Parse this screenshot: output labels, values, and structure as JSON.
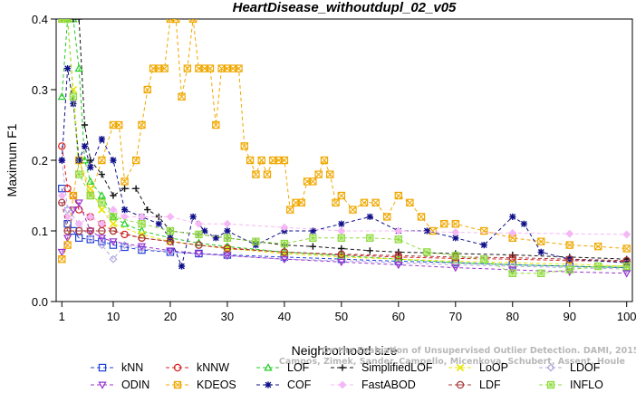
{
  "chart_data": {
    "type": "line",
    "title": "HeartDisease_withoutdupl_02_v05",
    "xlabel": "Neighborhood size",
    "ylabel": "Maximum F1",
    "xlim": [
      0,
      101
    ],
    "ylim": [
      0,
      0.4
    ],
    "xticks": [
      1,
      10,
      20,
      30,
      40,
      50,
      60,
      70,
      80,
      90,
      100
    ],
    "yticks": [
      0.0,
      0.1,
      0.2,
      0.3,
      0.4
    ],
    "xtick_labels": [
      "1",
      "10",
      "20",
      "30",
      "40",
      "50",
      "60",
      "70",
      "80",
      "90",
      "100"
    ],
    "ytick_labels": [
      "0.0",
      "0.1",
      "0.2",
      "0.3",
      "0.4"
    ],
    "grid": false,
    "legend_position": "bottom",
    "watermark_lines": [
      "Campos, Zimek, Sander, Campello, Micenkova, Schubert, Assent, Houle",
      "On the Evaluation of Unsupervised Outlier Detection. DAMI, 2015."
    ],
    "series": [
      {
        "name": "kNN",
        "color": "#1f3fd8",
        "marker": "square",
        "points": [
          [
            1,
            0.16
          ],
          [
            2,
            0.11
          ],
          [
            3,
            0.1
          ],
          [
            4,
            0.09
          ],
          [
            6,
            0.088
          ],
          [
            8,
            0.085
          ],
          [
            10,
            0.08
          ],
          [
            12,
            0.077
          ],
          [
            15,
            0.073
          ],
          [
            20,
            0.07
          ],
          [
            25,
            0.068
          ],
          [
            30,
            0.066
          ],
          [
            40,
            0.063
          ],
          [
            50,
            0.06
          ],
          [
            60,
            0.057
          ],
          [
            70,
            0.055
          ],
          [
            80,
            0.052
          ],
          [
            90,
            0.05
          ],
          [
            100,
            0.048
          ]
        ]
      },
      {
        "name": "kNNW",
        "color": "#d62020",
        "marker": "circle",
        "points": [
          [
            1,
            0.22
          ],
          [
            2,
            0.16
          ],
          [
            3,
            0.15
          ],
          [
            4,
            0.13
          ],
          [
            6,
            0.12
          ],
          [
            8,
            0.11
          ],
          [
            10,
            0.1
          ],
          [
            12,
            0.095
          ],
          [
            15,
            0.09
          ],
          [
            20,
            0.085
          ],
          [
            25,
            0.08
          ],
          [
            30,
            0.076
          ],
          [
            40,
            0.07
          ],
          [
            50,
            0.066
          ],
          [
            60,
            0.063
          ],
          [
            70,
            0.061
          ],
          [
            80,
            0.06
          ],
          [
            90,
            0.058
          ],
          [
            100,
            0.057
          ]
        ]
      },
      {
        "name": "LOF",
        "color": "#22cc22",
        "marker": "triangle",
        "points": [
          [
            1,
            0.29
          ],
          [
            2,
            0.4
          ],
          [
            3,
            0.4
          ],
          [
            4,
            0.33
          ],
          [
            5,
            0.2
          ],
          [
            6,
            0.17
          ],
          [
            8,
            0.15
          ],
          [
            10,
            0.12
          ],
          [
            12,
            0.11
          ],
          [
            15,
            0.1
          ],
          [
            20,
            0.09
          ],
          [
            25,
            0.083
          ],
          [
            30,
            0.078
          ],
          [
            40,
            0.07
          ],
          [
            50,
            0.065
          ],
          [
            60,
            0.06
          ],
          [
            70,
            0.055
          ],
          [
            80,
            0.052
          ],
          [
            90,
            0.05
          ],
          [
            100,
            0.048
          ]
        ]
      },
      {
        "name": "SimplifiedLOF",
        "color": "#111111",
        "marker": "plus",
        "points": [
          [
            1,
            0.4
          ],
          [
            2,
            0.4
          ],
          [
            3,
            0.4
          ],
          [
            4,
            0.4
          ],
          [
            5,
            0.25
          ],
          [
            6,
            0.2
          ],
          [
            8,
            0.18
          ],
          [
            10,
            0.15
          ],
          [
            12,
            0.16
          ],
          [
            14,
            0.16
          ],
          [
            16,
            0.13
          ],
          [
            18,
            0.12
          ],
          [
            20,
            0.1
          ],
          [
            25,
            0.095
          ],
          [
            30,
            0.09
          ],
          [
            35,
            0.085
          ],
          [
            40,
            0.08
          ],
          [
            45,
            0.078
          ],
          [
            50,
            0.075
          ],
          [
            55,
            0.072
          ],
          [
            60,
            0.07
          ],
          [
            70,
            0.068
          ],
          [
            80,
            0.066
          ],
          [
            90,
            0.063
          ],
          [
            100,
            0.06
          ]
        ]
      },
      {
        "name": "LoOP",
        "color": "#e6e600",
        "marker": "x",
        "points": [
          [
            1,
            0.4
          ],
          [
            2,
            0.4
          ],
          [
            3,
            0.3
          ],
          [
            4,
            0.2
          ],
          [
            6,
            0.16
          ],
          [
            8,
            0.13
          ],
          [
            10,
            0.11
          ],
          [
            15,
            0.095
          ],
          [
            20,
            0.085
          ],
          [
            30,
            0.075
          ],
          [
            40,
            0.068
          ],
          [
            50,
            0.063
          ],
          [
            60,
            0.06
          ],
          [
            70,
            0.057
          ],
          [
            80,
            0.055
          ],
          [
            90,
            0.053
          ],
          [
            100,
            0.05
          ]
        ]
      },
      {
        "name": "LDOF",
        "color": "#b0a8e0",
        "marker": "diamond",
        "points": [
          [
            1,
            0.2
          ],
          [
            2,
            0.13
          ],
          [
            4,
            0.11
          ],
          [
            6,
            0.09
          ],
          [
            8,
            0.08
          ],
          [
            10,
            0.06
          ],
          [
            12,
            0.08
          ],
          [
            15,
            0.075
          ],
          [
            20,
            0.07
          ],
          [
            30,
            0.065
          ],
          [
            40,
            0.06
          ],
          [
            50,
            0.058
          ],
          [
            60,
            0.055
          ],
          [
            70,
            0.052
          ],
          [
            80,
            0.05
          ],
          [
            90,
            0.048
          ],
          [
            100,
            0.046
          ]
        ]
      },
      {
        "name": "ODIN",
        "color": "#9a30d0",
        "marker": "triangle-down",
        "points": [
          [
            1,
            0.07
          ],
          [
            2,
            0.09
          ],
          [
            3,
            0.13
          ],
          [
            4,
            0.14
          ],
          [
            6,
            0.1
          ],
          [
            8,
            0.09
          ],
          [
            10,
            0.085
          ],
          [
            15,
            0.078
          ],
          [
            20,
            0.072
          ],
          [
            25,
            0.068
          ],
          [
            30,
            0.065
          ],
          [
            40,
            0.06
          ],
          [
            50,
            0.056
          ],
          [
            60,
            0.052
          ],
          [
            70,
            0.048
          ],
          [
            80,
            0.045
          ],
          [
            90,
            0.042
          ],
          [
            100,
            0.04
          ]
        ]
      },
      {
        "name": "KDEOS",
        "color": "#f0a800",
        "marker": "square-x",
        "points": [
          [
            1,
            0.06
          ],
          [
            2,
            0.08
          ],
          [
            3,
            0.15
          ],
          [
            4,
            0.2
          ],
          [
            6,
            0.15
          ],
          [
            8,
            0.2
          ],
          [
            10,
            0.25
          ],
          [
            11,
            0.25
          ],
          [
            12,
            0.17
          ],
          [
            14,
            0.2
          ],
          [
            15,
            0.25
          ],
          [
            16,
            0.3
          ],
          [
            17,
            0.33
          ],
          [
            18,
            0.33
          ],
          [
            19,
            0.33
          ],
          [
            20,
            0.4
          ],
          [
            21,
            0.4
          ],
          [
            22,
            0.29
          ],
          [
            23,
            0.33
          ],
          [
            24,
            0.4
          ],
          [
            25,
            0.33
          ],
          [
            26,
            0.33
          ],
          [
            27,
            0.33
          ],
          [
            28,
            0.25
          ],
          [
            29,
            0.33
          ],
          [
            30,
            0.33
          ],
          [
            31,
            0.33
          ],
          [
            32,
            0.33
          ],
          [
            33,
            0.22
          ],
          [
            34,
            0.2
          ],
          [
            35,
            0.18
          ],
          [
            36,
            0.2
          ],
          [
            37,
            0.18
          ],
          [
            38,
            0.2
          ],
          [
            39,
            0.2
          ],
          [
            40,
            0.2
          ],
          [
            41,
            0.13
          ],
          [
            42,
            0.14
          ],
          [
            43,
            0.14
          ],
          [
            44,
            0.17
          ],
          [
            45,
            0.17
          ],
          [
            46,
            0.18
          ],
          [
            47,
            0.2
          ],
          [
            48,
            0.18
          ],
          [
            49,
            0.14
          ],
          [
            50,
            0.15
          ],
          [
            52,
            0.13
          ],
          [
            54,
            0.14
          ],
          [
            56,
            0.14
          ],
          [
            58,
            0.12
          ],
          [
            60,
            0.15
          ],
          [
            62,
            0.14
          ],
          [
            64,
            0.12
          ],
          [
            66,
            0.1
          ],
          [
            68,
            0.11
          ],
          [
            70,
            0.11
          ],
          [
            75,
            0.1
          ],
          [
            80,
            0.09
          ],
          [
            85,
            0.085
          ],
          [
            90,
            0.08
          ],
          [
            95,
            0.078
          ],
          [
            100,
            0.075
          ]
        ]
      },
      {
        "name": "COF",
        "color": "#10108a",
        "marker": "star",
        "points": [
          [
            1,
            0.2
          ],
          [
            2,
            0.33
          ],
          [
            3,
            0.28
          ],
          [
            4,
            0.2
          ],
          [
            5,
            0.22
          ],
          [
            6,
            0.19
          ],
          [
            8,
            0.23
          ],
          [
            10,
            0.2
          ],
          [
            12,
            0.13
          ],
          [
            15,
            0.12
          ],
          [
            18,
            0.11
          ],
          [
            20,
            0.09
          ],
          [
            22,
            0.05
          ],
          [
            24,
            0.12
          ],
          [
            26,
            0.1
          ],
          [
            28,
            0.09
          ],
          [
            30,
            0.1
          ],
          [
            35,
            0.08
          ],
          [
            40,
            0.1
          ],
          [
            45,
            0.1
          ],
          [
            50,
            0.11
          ],
          [
            55,
            0.12
          ],
          [
            60,
            0.1
          ],
          [
            65,
            0.1
          ],
          [
            70,
            0.09
          ],
          [
            75,
            0.08
          ],
          [
            80,
            0.12
          ],
          [
            82,
            0.11
          ],
          [
            85,
            0.07
          ],
          [
            90,
            0.06
          ],
          [
            100,
            0.055
          ]
        ]
      },
      {
        "name": "FastABOD",
        "color": "#f5b8f5",
        "marker": "diamond-filled",
        "points": [
          [
            1,
            0.15
          ],
          [
            2,
            0.12
          ],
          [
            4,
            0.11
          ],
          [
            6,
            0.12
          ],
          [
            8,
            0.11
          ],
          [
            10,
            0.13
          ],
          [
            12,
            0.12
          ],
          [
            15,
            0.12
          ],
          [
            20,
            0.12
          ],
          [
            25,
            0.11
          ],
          [
            30,
            0.11
          ],
          [
            40,
            0.105
          ],
          [
            50,
            0.1
          ],
          [
            60,
            0.1
          ],
          [
            70,
            0.098
          ],
          [
            80,
            0.097
          ],
          [
            90,
            0.096
          ],
          [
            100,
            0.095
          ]
        ]
      },
      {
        "name": "LDF",
        "color": "#a83a3a",
        "marker": "circle-line",
        "points": [
          [
            1,
            0.14
          ],
          [
            2,
            0.1
          ],
          [
            4,
            0.1
          ],
          [
            6,
            0.1
          ],
          [
            8,
            0.1
          ],
          [
            10,
            0.1
          ],
          [
            15,
            0.09
          ],
          [
            20,
            0.085
          ],
          [
            25,
            0.08
          ],
          [
            30,
            0.075
          ],
          [
            40,
            0.07
          ],
          [
            50,
            0.067
          ],
          [
            60,
            0.065
          ],
          [
            70,
            0.063
          ],
          [
            80,
            0.062
          ],
          [
            90,
            0.06
          ],
          [
            100,
            0.058
          ]
        ]
      },
      {
        "name": "INFLO",
        "color": "#90dc40",
        "marker": "square-star",
        "points": [
          [
            1,
            0.4
          ],
          [
            2,
            0.4
          ],
          [
            3,
            0.29
          ],
          [
            4,
            0.18
          ],
          [
            6,
            0.15
          ],
          [
            8,
            0.14
          ],
          [
            10,
            0.12
          ],
          [
            15,
            0.11
          ],
          [
            20,
            0.1
          ],
          [
            25,
            0.095
          ],
          [
            30,
            0.09
          ],
          [
            35,
            0.085
          ],
          [
            40,
            0.082
          ],
          [
            45,
            0.09
          ],
          [
            50,
            0.09
          ],
          [
            55,
            0.09
          ],
          [
            60,
            0.088
          ],
          [
            65,
            0.07
          ],
          [
            70,
            0.065
          ],
          [
            75,
            0.06
          ],
          [
            80,
            0.04
          ],
          [
            85,
            0.04
          ],
          [
            90,
            0.045
          ],
          [
            95,
            0.05
          ],
          [
            100,
            0.05
          ]
        ]
      }
    ]
  }
}
